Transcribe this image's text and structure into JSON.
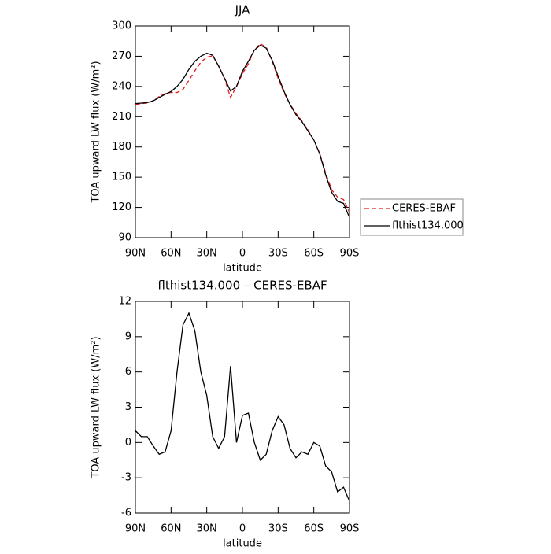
{
  "chart_data": [
    {
      "type": "line",
      "title": "JJA",
      "xlabel": "latitude",
      "ylabel": "TOA upward LW flux (W/m²)",
      "x": [
        90,
        85,
        80,
        75,
        70,
        65,
        60,
        55,
        50,
        45,
        40,
        35,
        30,
        25,
        20,
        15,
        10,
        5,
        0,
        -5,
        -10,
        -15,
        -20,
        -25,
        -30,
        -35,
        -40,
        -45,
        -50,
        -55,
        -60,
        -65,
        -70,
        -75,
        -80,
        -85,
        -90
      ],
      "xlim": [
        90,
        -90
      ],
      "xticks": [
        {
          "value": 90,
          "label": "90N"
        },
        {
          "value": 60,
          "label": "60N"
        },
        {
          "value": 30,
          "label": "30N"
        },
        0,
        {
          "value": -30,
          "label": "30S"
        },
        {
          "value": -60,
          "label": "60S"
        },
        {
          "value": -90,
          "label": "90S"
        }
      ],
      "ylim": [
        90,
        300
      ],
      "yticks": [
        90,
        120,
        150,
        180,
        210,
        240,
        270,
        300
      ],
      "legend": "right",
      "series": [
        {
          "name": "CERES-EBAF",
          "color": "#e41a1c",
          "dash": true,
          "values": [
            222,
            223,
            223.5,
            226,
            230,
            233,
            234,
            234,
            237,
            246,
            255.5,
            264,
            269,
            270.5,
            260.5,
            247.5,
            229,
            240,
            252.7,
            262.5,
            276,
            282.5,
            279,
            265,
            248,
            233.5,
            222.5,
            213.3,
            205.8,
            197,
            187,
            173.3,
            154,
            137.5,
            130.2,
            127.8,
            115
          ]
        },
        {
          "name": "flthist134.000",
          "color": "#000000",
          "dash": false,
          "values": [
            223,
            223.5,
            224,
            225.7,
            229,
            232.2,
            235,
            240,
            247,
            257,
            265,
            270,
            273,
            271,
            260,
            248,
            235.5,
            240,
            255,
            265,
            276,
            281,
            278,
            266,
            250.2,
            235,
            222,
            212,
            205,
            196,
            187,
            173,
            152,
            135,
            126,
            124,
            110
          ]
        }
      ]
    },
    {
      "type": "line",
      "title": "flthist134.000 – CERES-EBAF",
      "xlabel": "latitude",
      "ylabel": "TOA upward LW flux (W/m²)",
      "x": [
        90,
        85,
        80,
        75,
        70,
        65,
        60,
        55,
        50,
        45,
        40,
        35,
        30,
        25,
        20,
        15,
        10,
        5,
        0,
        -5,
        -10,
        -15,
        -20,
        -25,
        -30,
        -35,
        -40,
        -45,
        -50,
        -55,
        -60,
        -65,
        -70,
        -75,
        -80,
        -85,
        -90
      ],
      "xlim": [
        90,
        -90
      ],
      "xticks": [
        {
          "value": 90,
          "label": "90N"
        },
        {
          "value": 60,
          "label": "60N"
        },
        {
          "value": 30,
          "label": "30N"
        },
        0,
        {
          "value": -30,
          "label": "30S"
        },
        {
          "value": -60,
          "label": "60S"
        },
        {
          "value": -90,
          "label": "90S"
        }
      ],
      "ylim": [
        -6,
        12
      ],
      "yticks": [
        -6,
        -3,
        0,
        3,
        6,
        9,
        12
      ],
      "color": "#000000",
      "values": [
        1,
        0.5,
        0.5,
        -0.3,
        -1,
        -0.8,
        1,
        6,
        10,
        11,
        9.5,
        6,
        4,
        0.5,
        -0.5,
        0.5,
        6.5,
        0,
        2.3,
        2.5,
        0,
        -1.5,
        -1,
        1,
        2.2,
        1.5,
        -0.5,
        -1.3,
        -0.8,
        -1,
        0,
        -0.3,
        -2,
        -2.5,
        -4.2,
        -3.8,
        -5
      ]
    }
  ]
}
